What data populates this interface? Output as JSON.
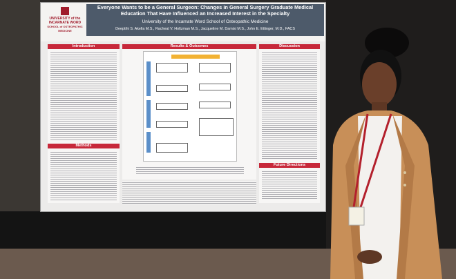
{
  "poster": {
    "logo": "UNIVERSITY of the INCARNATE WORD",
    "logo_sub": "SCHOOL of OSTEOPATHIC MEDICINE",
    "title": "Everyone Wants to be a General Surgeon: Changes in General Surgery Graduate Medical Education That Have Influenced an Increased Interest in the Specialty",
    "institution": "University of the Incarnate Word School of Osteopathic Medicine",
    "authors": "Deeptihi S. Akella M.S., Racheal V. Holtzman M.S., Jacqueline M. Damisi M.S., John E. Ettinger, M.D., FACS",
    "sections": {
      "introduction": "Introduction",
      "methods": "Methods",
      "results": "Results & Outcomes",
      "discussion": "Discussion",
      "future": "Future Directions"
    }
  }
}
